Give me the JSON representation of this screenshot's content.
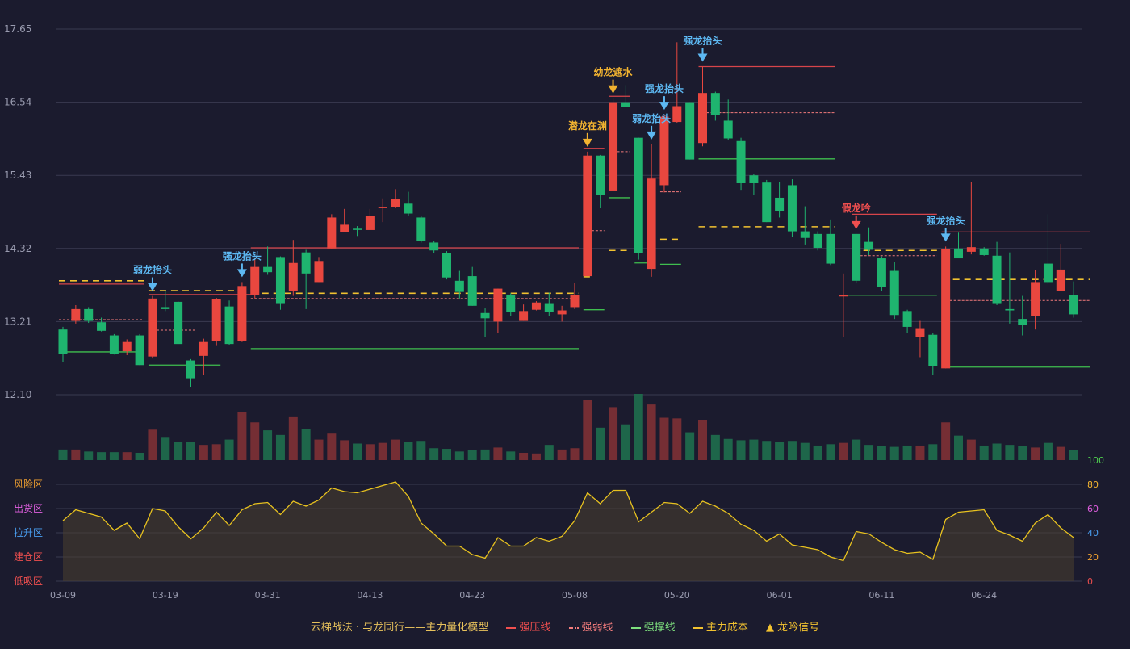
{
  "chart_data": [
    {
      "type": "candlestick",
      "y_ticks": [
        "17.65",
        "16.54",
        "15.43",
        "14.32",
        "13.21",
        "12.10"
      ],
      "ylim": [
        12.1,
        17.65
      ],
      "x_tick_labels": [
        {
          "i": 0,
          "label": "03-09"
        },
        {
          "i": 8,
          "label": "03-19"
        },
        {
          "i": 16,
          "label": "03-31"
        },
        {
          "i": 24,
          "label": "04-13"
        },
        {
          "i": 32,
          "label": "04-23"
        },
        {
          "i": 40,
          "label": "05-08"
        },
        {
          "i": 48,
          "label": "05-20"
        },
        {
          "i": 56,
          "label": "06-01"
        },
        {
          "i": 64,
          "label": "06-11"
        },
        {
          "i": 72,
          "label": "06-24"
        }
      ],
      "candles": [
        [
          13.09,
          12.72,
          13.13,
          12.6
        ],
        [
          13.22,
          13.4,
          13.46,
          13.18
        ],
        [
          13.4,
          13.22,
          13.43,
          13.19
        ],
        [
          13.2,
          13.07,
          13.27,
          13.06
        ],
        [
          13.0,
          12.72,
          13.02,
          12.71
        ],
        [
          12.76,
          12.9,
          12.94,
          12.7
        ],
        [
          13.0,
          12.55,
          13.02,
          12.55
        ],
        [
          12.68,
          13.56,
          13.6,
          12.65
        ],
        [
          13.43,
          13.4,
          13.67,
          13.37
        ],
        [
          13.51,
          12.87,
          13.52,
          12.87
        ],
        [
          12.62,
          12.35,
          12.64,
          12.22
        ],
        [
          12.69,
          12.9,
          12.95,
          12.4
        ],
        [
          12.92,
          13.55,
          13.57,
          12.84
        ],
        [
          13.44,
          12.87,
          13.53,
          12.85
        ],
        [
          12.91,
          13.75,
          13.81,
          12.9
        ],
        [
          13.62,
          14.04,
          14.17,
          13.56
        ],
        [
          14.04,
          13.96,
          14.35,
          13.92
        ],
        [
          14.19,
          13.49,
          14.2,
          13.39
        ],
        [
          13.67,
          14.1,
          14.45,
          13.6
        ],
        [
          14.26,
          13.94,
          14.3,
          13.4
        ],
        [
          13.81,
          14.13,
          14.19,
          13.81
        ],
        [
          14.32,
          14.79,
          14.84,
          14.32
        ],
        [
          14.57,
          14.68,
          14.92,
          14.57
        ],
        [
          14.62,
          14.61,
          14.66,
          14.51
        ],
        [
          14.6,
          14.81,
          14.92,
          14.6
        ],
        [
          14.95,
          14.95,
          15.08,
          14.72
        ],
        [
          14.95,
          15.07,
          15.22,
          14.93
        ],
        [
          15.0,
          14.85,
          15.18,
          14.82
        ],
        [
          14.79,
          14.43,
          14.81,
          14.41
        ],
        [
          14.41,
          14.29,
          14.43,
          14.25
        ],
        [
          14.25,
          13.88,
          14.28,
          13.85
        ],
        [
          13.83,
          13.66,
          13.98,
          13.56
        ],
        [
          13.9,
          13.45,
          14.04,
          13.45
        ],
        [
          13.34,
          13.26,
          13.41,
          12.98
        ],
        [
          13.21,
          13.71,
          13.71,
          13.04
        ],
        [
          13.62,
          13.36,
          13.64,
          13.3
        ],
        [
          13.22,
          13.37,
          13.47,
          13.22
        ],
        [
          13.39,
          13.5,
          13.52,
          13.38
        ],
        [
          13.49,
          13.36,
          13.65,
          13.29
        ],
        [
          13.32,
          13.38,
          13.45,
          13.21
        ],
        [
          13.43,
          13.61,
          13.8,
          13.4
        ],
        [
          13.9,
          15.73,
          15.79,
          13.9
        ],
        [
          15.73,
          15.13,
          15.74,
          14.93
        ],
        [
          15.2,
          16.54,
          16.6,
          15.2
        ],
        [
          16.54,
          16.47,
          16.8,
          16.47
        ],
        [
          16.0,
          14.25,
          16.0,
          14.15
        ],
        [
          14.01,
          15.38,
          15.9,
          13.89
        ],
        [
          15.28,
          16.32,
          16.35,
          15.17
        ],
        [
          16.24,
          16.48,
          17.45,
          16.23
        ],
        [
          16.54,
          15.67,
          16.54,
          15.67
        ],
        [
          15.92,
          16.68,
          17.08,
          15.87
        ],
        [
          16.68,
          16.34,
          16.7,
          16.26
        ],
        [
          16.26,
          15.99,
          16.58,
          15.96
        ],
        [
          15.95,
          15.31,
          16.0,
          15.21
        ],
        [
          15.43,
          15.31,
          15.45,
          15.13
        ],
        [
          15.32,
          14.72,
          15.36,
          14.72
        ],
        [
          15.09,
          14.89,
          15.33,
          14.79
        ],
        [
          15.28,
          14.58,
          15.37,
          14.5
        ],
        [
          14.58,
          14.48,
          14.96,
          14.38
        ],
        [
          14.54,
          14.33,
          14.58,
          14.29
        ],
        [
          14.54,
          14.09,
          14.76,
          14.07
        ],
        [
          13.61,
          13.61,
          13.94,
          12.97
        ],
        [
          14.54,
          13.83,
          14.54,
          13.79
        ],
        [
          14.42,
          14.3,
          14.64,
          14.22
        ],
        [
          14.17,
          13.73,
          14.2,
          13.68
        ],
        [
          13.98,
          13.31,
          14.11,
          13.25
        ],
        [
          13.37,
          13.13,
          13.39,
          13.04
        ],
        [
          12.98,
          13.11,
          13.22,
          12.67
        ],
        [
          13.01,
          12.54,
          13.04,
          12.4
        ],
        [
          12.5,
          14.31,
          14.35,
          12.5
        ],
        [
          14.32,
          14.17,
          14.56,
          14.17
        ],
        [
          14.27,
          14.34,
          15.33,
          14.23
        ],
        [
          14.32,
          14.22,
          14.34,
          14.21
        ],
        [
          14.21,
          13.49,
          14.42,
          13.46
        ],
        [
          13.4,
          13.38,
          14.26,
          13.18
        ],
        [
          13.25,
          13.16,
          13.6,
          13.0
        ],
        [
          13.29,
          13.81,
          13.99,
          13.09
        ],
        [
          14.09,
          13.81,
          14.84,
          13.78
        ],
        [
          13.68,
          14.0,
          14.39,
          13.69
        ],
        [
          13.61,
          13.32,
          13.82,
          13.27
        ]
      ],
      "lines": {
        "strong_pressure": [
          {
            "from": 0,
            "to": 6,
            "value": 13.78
          },
          {
            "from": 7,
            "to": 15,
            "value": 13.62
          },
          {
            "from": 15,
            "to": 40,
            "value": 14.33
          },
          {
            "from": 41,
            "to": 42,
            "value": 15.84
          },
          {
            "from": 43,
            "to": 44,
            "value": 16.63
          },
          {
            "from": 46,
            "to": 47,
            "value": 15.39
          },
          {
            "from": 50,
            "to": 60,
            "value": 17.08
          },
          {
            "from": 62,
            "to": 68,
            "value": 14.84
          },
          {
            "from": 69,
            "to": 80,
            "value": 14.57
          }
        ],
        "strong_weak": [
          {
            "from": 0,
            "to": 6,
            "value": 13.24
          },
          {
            "from": 7,
            "to": 10,
            "value": 13.08
          },
          {
            "from": 15,
            "to": 40,
            "value": 13.56
          },
          {
            "from": 41,
            "to": 42,
            "value": 14.59
          },
          {
            "from": 43,
            "to": 44,
            "value": 15.79
          },
          {
            "from": 47,
            "to": 48,
            "value": 15.18
          },
          {
            "from": 50,
            "to": 60,
            "value": 16.38
          },
          {
            "from": 62,
            "to": 68,
            "value": 14.21
          },
          {
            "from": 69,
            "to": 80,
            "value": 13.53
          }
        ],
        "strong_support": [
          {
            "from": 0,
            "to": 6,
            "value": 12.75
          },
          {
            "from": 7,
            "to": 12,
            "value": 12.55
          },
          {
            "from": 15,
            "to": 40,
            "value": 12.8
          },
          {
            "from": 41,
            "to": 42,
            "value": 13.39
          },
          {
            "from": 43,
            "to": 44,
            "value": 15.09
          },
          {
            "from": 45,
            "to": 46,
            "value": 14.1
          },
          {
            "from": 47,
            "to": 48,
            "value": 14.08
          },
          {
            "from": 50,
            "to": 60,
            "value": 15.68
          },
          {
            "from": 61,
            "to": 68,
            "value": 13.61
          },
          {
            "from": 69,
            "to": 80,
            "value": 12.52
          }
        ],
        "main_cost": [
          {
            "from": 0,
            "to": 6,
            "value": 13.83
          },
          {
            "from": 7,
            "to": 14,
            "value": 13.68
          },
          {
            "from": 15,
            "to": 40,
            "value": 13.64
          },
          {
            "from": 41,
            "to": 41,
            "value": 13.89
          },
          {
            "from": 43,
            "to": 44,
            "value": 14.29
          },
          {
            "from": 47,
            "to": 48,
            "value": 14.46
          },
          {
            "from": 50,
            "to": 60,
            "value": 14.65
          },
          {
            "from": 62,
            "to": 68,
            "value": 14.29
          },
          {
            "from": 69,
            "to": 80,
            "value": 13.85
          }
        ]
      },
      "signals": [
        {
          "i": 7,
          "label": "弱龙抬头",
          "kind": "blue"
        },
        {
          "i": 14,
          "label": "强龙抬头",
          "kind": "blue"
        },
        {
          "i": 41,
          "label": "潜龙在渊",
          "kind": "gold"
        },
        {
          "i": 43,
          "label": "幼龙遮水",
          "kind": "gold"
        },
        {
          "i": 46,
          "label": "弱龙抬头",
          "kind": "blue"
        },
        {
          "i": 47,
          "label": "强龙抬头",
          "kind": "blue"
        },
        {
          "i": 50,
          "label": "强龙抬头",
          "kind": "blue"
        },
        {
          "i": 62,
          "label": "假龙吟",
          "kind": "red"
        },
        {
          "i": 69,
          "label": "强龙抬头",
          "kind": "blue"
        }
      ]
    },
    {
      "type": "bar",
      "name_hidden": true,
      "volume_relative": [
        0.16,
        0.16,
        0.13,
        0.12,
        0.12,
        0.12,
        0.11,
        0.46,
        0.35,
        0.27,
        0.28,
        0.23,
        0.24,
        0.31,
        0.73,
        0.57,
        0.45,
        0.38,
        0.66,
        0.47,
        0.31,
        0.4,
        0.3,
        0.25,
        0.24,
        0.26,
        0.31,
        0.28,
        0.29,
        0.18,
        0.17,
        0.13,
        0.15,
        0.16,
        0.19,
        0.13,
        0.11,
        0.1,
        0.23,
        0.16,
        0.18,
        0.91,
        0.49,
        0.8,
        0.54,
        1.0,
        0.84,
        0.64,
        0.63,
        0.42,
        0.61,
        0.38,
        0.32,
        0.3,
        0.31,
        0.29,
        0.27,
        0.29,
        0.26,
        0.22,
        0.24,
        0.26,
        0.31,
        0.23,
        0.21,
        0.2,
        0.22,
        0.22,
        0.24,
        0.57,
        0.37,
        0.31,
        0.22,
        0.25,
        0.23,
        0.21,
        0.19,
        0.26,
        0.2,
        0.15
      ]
    },
    {
      "type": "area",
      "y_ticks": [
        "100",
        "80",
        "60",
        "40",
        "20",
        "0"
      ],
      "ylim": [
        0,
        100
      ],
      "zone_labels": [
        "风险区",
        "出货区",
        "拉升区",
        "建仓区",
        "低吸区"
      ],
      "values": [
        50,
        59,
        56,
        53,
        42,
        48,
        35,
        60,
        58,
        45,
        35,
        44,
        57,
        46,
        59,
        64,
        65,
        55,
        66,
        62,
        67,
        77,
        74,
        73,
        76,
        79,
        82,
        70,
        48,
        39,
        29,
        29,
        22,
        19,
        36,
        29,
        29,
        36,
        33,
        37,
        50,
        73,
        64,
        75,
        75,
        49,
        57,
        65,
        64,
        56,
        66,
        62,
        56,
        47,
        42,
        33,
        39,
        30,
        28,
        26,
        20,
        17,
        41,
        39,
        32,
        26,
        23,
        24,
        18,
        51,
        57,
        58,
        59,
        42,
        38,
        33,
        48,
        55,
        44,
        36
      ]
    }
  ],
  "legend": {
    "title": "云梯战法 · 与龙同行——主力量化模型",
    "items": [
      {
        "label": "强压线",
        "color": "#f04f4f",
        "style": "solid"
      },
      {
        "label": "强弱线",
        "color": "#f47d7d",
        "style": "dotted"
      },
      {
        "label": "强撑线",
        "color": "#7ee07e",
        "style": "solid"
      },
      {
        "label": "主力成本",
        "color": "#f2c230",
        "style": "dashed"
      },
      {
        "label": "龙吟信号",
        "color": "#f2c230",
        "style": "triangle"
      }
    ]
  },
  "colors": {
    "up": "#e9473f",
    "down": "#1fb46f",
    "grid": "#3a3b50",
    "axis_text": "#9a9cb0",
    "pressure": "#d7444a",
    "weak": "#f27b7b",
    "support": "#3fbf4f",
    "cost": "#f2c230",
    "blue_signal": "#5db8f2",
    "gold_signal": "#f2b330",
    "red_signal": "#f04f4f"
  }
}
